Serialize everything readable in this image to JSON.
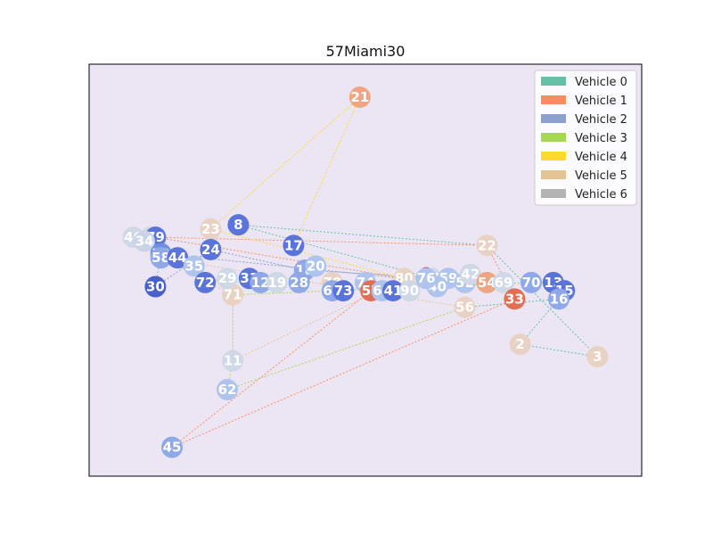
{
  "title": "57Miami30",
  "plot_background": "#ece6f4",
  "legend": {
    "placement": "top-right",
    "items": [
      {
        "label": "Vehicle 0",
        "color": "#66c2a5"
      },
      {
        "label": "Vehicle 1",
        "color": "#fc8d62"
      },
      {
        "label": "Vehicle 2",
        "color": "#8da0cb"
      },
      {
        "label": "Vehicle 3",
        "color": "#a6d854"
      },
      {
        "label": "Vehicle 4",
        "color": "#ffd92f"
      },
      {
        "label": "Vehicle 5",
        "color": "#e5c494"
      },
      {
        "label": "Vehicle 6",
        "color": "#b3b3b3"
      }
    ]
  },
  "chart_data": {
    "type": "scatter",
    "description_type": "vehicle-routing-graph",
    "grid": false,
    "nodes": [
      {
        "id": "21",
        "x": 0.49,
        "y": 0.92,
        "color": "#f0a582"
      },
      {
        "id": "23",
        "x": 0.22,
        "y": 0.6,
        "color": "#e8d2c4"
      },
      {
        "id": "8",
        "x": 0.27,
        "y": 0.61,
        "color": "#5b74d9"
      },
      {
        "id": "46",
        "x": 0.08,
        "y": 0.58,
        "color": "#cfd8e6"
      },
      {
        "id": "67",
        "x": 0.11,
        "y": 0.58,
        "color": "#d4dbe6"
      },
      {
        "id": "79",
        "x": 0.12,
        "y": 0.58,
        "color": "#5b74d9"
      },
      {
        "id": "34",
        "x": 0.1,
        "y": 0.57,
        "color": "#c9d4e8"
      },
      {
        "id": "39",
        "x": 0.13,
        "y": 0.54,
        "color": "#6f8fe0"
      },
      {
        "id": "58",
        "x": 0.13,
        "y": 0.53,
        "color": "#8ea8e8"
      },
      {
        "id": "44",
        "x": 0.16,
        "y": 0.53,
        "color": "#5b74d9"
      },
      {
        "id": "24",
        "x": 0.22,
        "y": 0.55,
        "color": "#5b74d9"
      },
      {
        "id": "17",
        "x": 0.37,
        "y": 0.56,
        "color": "#5b74d9"
      },
      {
        "id": "22",
        "x": 0.72,
        "y": 0.56,
        "color": "#e8d2c4"
      },
      {
        "id": "35",
        "x": 0.19,
        "y": 0.51,
        "color": "#b0c4ec"
      },
      {
        "id": "30",
        "x": 0.12,
        "y": 0.46,
        "color": "#4a5fc7"
      },
      {
        "id": "72",
        "x": 0.21,
        "y": 0.47,
        "color": "#5b74d9"
      },
      {
        "id": "71",
        "x": 0.26,
        "y": 0.44,
        "color": "#e8d2c4"
      },
      {
        "id": "18",
        "x": 0.39,
        "y": 0.5,
        "color": "#8ea8e8"
      },
      {
        "id": "20",
        "x": 0.41,
        "y": 0.51,
        "color": "#aec4ee"
      },
      {
        "id": "78",
        "x": 0.44,
        "y": 0.47,
        "color": "#e8d2c4"
      },
      {
        "id": "66",
        "x": 0.44,
        "y": 0.45,
        "color": "#8ea8e8"
      },
      {
        "id": "73",
        "x": 0.46,
        "y": 0.45,
        "color": "#5b74d9"
      },
      {
        "id": "74",
        "x": 0.5,
        "y": 0.47,
        "color": "#aec4ee"
      },
      {
        "id": "57",
        "x": 0.51,
        "y": 0.45,
        "color": "#e06f55"
      },
      {
        "id": "64",
        "x": 0.53,
        "y": 0.45,
        "color": "#aec4ee"
      },
      {
        "id": "80",
        "x": 0.57,
        "y": 0.48,
        "color": "#e8d2c4"
      },
      {
        "id": "61",
        "x": 0.62,
        "y": 0.48,
        "color": "#cfd8e6"
      },
      {
        "id": "59",
        "x": 0.65,
        "y": 0.48,
        "color": "#aec4ee"
      },
      {
        "id": "52",
        "x": 0.68,
        "y": 0.47,
        "color": "#aec4ee"
      },
      {
        "id": "42",
        "x": 0.69,
        "y": 0.49,
        "color": "#cfd8e6"
      },
      {
        "id": "54",
        "x": 0.72,
        "y": 0.47,
        "color": "#f0a582"
      },
      {
        "id": "69",
        "x": 0.75,
        "y": 0.47,
        "color": "#cfd8e6"
      },
      {
        "id": "70",
        "x": 0.8,
        "y": 0.47,
        "color": "#8ea8e8"
      },
      {
        "id": "13",
        "x": 0.84,
        "y": 0.47,
        "color": "#5b74d9"
      },
      {
        "id": "15",
        "x": 0.86,
        "y": 0.45,
        "color": "#5b74d9"
      },
      {
        "id": "16",
        "x": 0.85,
        "y": 0.43,
        "color": "#8ea8e8"
      },
      {
        "id": "33",
        "x": 0.77,
        "y": 0.43,
        "color": "#e06f55"
      },
      {
        "id": "56",
        "x": 0.68,
        "y": 0.41,
        "color": "#e8d2c4"
      },
      {
        "id": "2",
        "x": 0.78,
        "y": 0.32,
        "color": "#e8d2c4"
      },
      {
        "id": "3",
        "x": 0.92,
        "y": 0.29,
        "color": "#e8d2c4"
      },
      {
        "id": "11",
        "x": 0.26,
        "y": 0.28,
        "color": "#cfd8e6"
      },
      {
        "id": "62",
        "x": 0.25,
        "y": 0.21,
        "color": "#aec4ee"
      },
      {
        "id": "45",
        "x": 0.15,
        "y": 0.07,
        "color": "#8ea8e8"
      },
      {
        "id": "29",
        "x": 0.25,
        "y": 0.48,
        "color": "#cfd8e6"
      },
      {
        "id": "31",
        "x": 0.29,
        "y": 0.48,
        "color": "#5b74d9"
      },
      {
        "id": "12",
        "x": 0.31,
        "y": 0.47,
        "color": "#8ea8e8"
      },
      {
        "id": "19",
        "x": 0.34,
        "y": 0.47,
        "color": "#cfd8e6"
      },
      {
        "id": "28",
        "x": 0.38,
        "y": 0.47,
        "color": "#8ea8e8"
      },
      {
        "id": "41",
        "x": 0.55,
        "y": 0.45,
        "color": "#5b74d9"
      },
      {
        "id": "40",
        "x": 0.63,
        "y": 0.46,
        "color": "#aec4ee"
      },
      {
        "id": "90",
        "x": 0.58,
        "y": 0.45,
        "color": "#cfd8e6"
      },
      {
        "id": "76",
        "x": 0.61,
        "y": 0.48,
        "color": "#aec4ee"
      }
    ],
    "depot": {
      "x": 0.61,
      "y": 0.49,
      "color": "#c8102e"
    },
    "routes": [
      {
        "vehicle": "Vehicle 0",
        "color": "#66c2a5",
        "stops": [
          "61",
          "8",
          "22",
          "3",
          "2",
          "16",
          "56"
        ]
      },
      {
        "vehicle": "Vehicle 1",
        "color": "#fc8d62",
        "stops": [
          "80",
          "79",
          "22",
          "33",
          "45",
          "57"
        ]
      },
      {
        "vehicle": "Vehicle 2",
        "color": "#8da0cb",
        "stops": [
          "80",
          "39",
          "30",
          "24",
          "18",
          "59"
        ]
      },
      {
        "vehicle": "Vehicle 3",
        "color": "#a6d854",
        "stops": [
          "56",
          "62",
          "11",
          "71",
          "70",
          "13"
        ]
      },
      {
        "vehicle": "Vehicle 4",
        "color": "#ffd92f",
        "stops": [
          "17",
          "21",
          "23",
          "80",
          "54"
        ]
      },
      {
        "vehicle": "Vehicle 5",
        "color": "#e5c494",
        "stops": [
          "80",
          "11",
          "71",
          "58",
          "56"
        ]
      },
      {
        "vehicle": "Vehicle 6",
        "color": "#b3b3b3",
        "stops": [
          "46",
          "34",
          "35",
          "72",
          "29"
        ]
      }
    ]
  }
}
